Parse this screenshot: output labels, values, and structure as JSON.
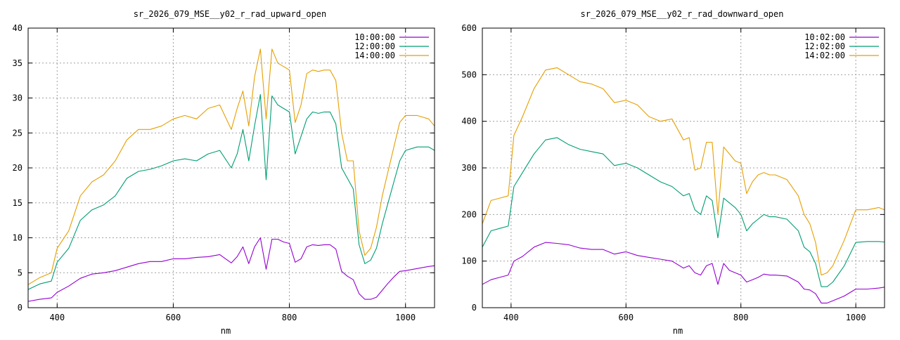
{
  "chart_data": [
    {
      "type": "line",
      "title": "sr_2026_079_MSE__y02_r_rad_upward_open",
      "xlabel": "nm",
      "ylabel": "",
      "xlim": [
        350,
        1050
      ],
      "ylim": [
        0,
        40
      ],
      "xticks": [
        400,
        600,
        800,
        1000
      ],
      "yticks": [
        0,
        5,
        10,
        15,
        20,
        25,
        30,
        35,
        40
      ],
      "grid": true,
      "legend": "top-right",
      "series": [
        {
          "name": "10:00:00",
          "color": "#9400d3",
          "x": [
            350,
            370,
            390,
            400,
            420,
            440,
            460,
            480,
            500,
            520,
            540,
            560,
            580,
            600,
            620,
            640,
            660,
            680,
            700,
            710,
            720,
            730,
            740,
            750,
            760,
            770,
            780,
            790,
            800,
            810,
            820,
            830,
            840,
            850,
            860,
            870,
            880,
            890,
            900,
            910,
            920,
            930,
            940,
            950,
            960,
            970,
            980,
            990,
            1000,
            1020,
            1040,
            1050
          ],
          "y": [
            0.9,
            1.2,
            1.4,
            2.2,
            3.1,
            4.2,
            4.8,
            5.0,
            5.3,
            5.8,
            6.3,
            6.6,
            6.6,
            7.0,
            7.0,
            7.2,
            7.3,
            7.6,
            6.4,
            7.3,
            8.7,
            6.3,
            8.7,
            10.0,
            5.5,
            9.8,
            9.8,
            9.4,
            9.2,
            6.5,
            7.0,
            8.7,
            9.0,
            8.9,
            9.0,
            9.0,
            8.4,
            5.2,
            4.5,
            4.0,
            2.0,
            1.2,
            1.2,
            1.5,
            2.5,
            3.5,
            4.4,
            5.2,
            5.3,
            5.6,
            5.9,
            6.0
          ]
        },
        {
          "name": "12:00:00",
          "color": "#009e73",
          "x": [
            350,
            370,
            390,
            400,
            420,
            440,
            460,
            480,
            500,
            520,
            540,
            560,
            580,
            600,
            620,
            640,
            660,
            680,
            700,
            710,
            720,
            730,
            740,
            750,
            760,
            770,
            780,
            790,
            800,
            810,
            820,
            830,
            840,
            850,
            860,
            870,
            880,
            890,
            900,
            910,
            920,
            930,
            940,
            950,
            960,
            970,
            980,
            990,
            1000,
            1020,
            1040,
            1050
          ],
          "y": [
            2.6,
            3.4,
            3.8,
            6.5,
            8.5,
            12.5,
            14.0,
            14.7,
            16.0,
            18.5,
            19.5,
            19.8,
            20.3,
            21.0,
            21.3,
            21.0,
            22.0,
            22.5,
            20.0,
            22.0,
            25.5,
            21.0,
            26.0,
            30.5,
            18.3,
            30.3,
            29.0,
            28.5,
            28.0,
            22.0,
            24.5,
            27.0,
            28.0,
            27.8,
            28.0,
            28.0,
            26.3,
            20.0,
            18.5,
            17.0,
            9.0,
            6.3,
            6.8,
            8.5,
            12.0,
            15.0,
            18.0,
            21.0,
            22.5,
            23.0,
            23.0,
            22.5
          ]
        },
        {
          "name": "14:00:00",
          "color": "#e69f00",
          "x": [
            350,
            370,
            390,
            400,
            420,
            440,
            460,
            480,
            500,
            520,
            540,
            560,
            580,
            600,
            620,
            640,
            660,
            680,
            700,
            710,
            720,
            730,
            740,
            750,
            760,
            770,
            780,
            790,
            800,
            810,
            820,
            830,
            840,
            850,
            860,
            870,
            880,
            890,
            900,
            910,
            920,
            930,
            940,
            950,
            960,
            970,
            980,
            990,
            1000,
            1020,
            1040,
            1050
          ],
          "y": [
            3.3,
            4.3,
            5.0,
            8.5,
            11.0,
            16.0,
            18.0,
            19.0,
            21.0,
            24.0,
            25.5,
            25.5,
            26.0,
            27.0,
            27.5,
            27.0,
            28.5,
            29.0,
            25.5,
            28.5,
            31.0,
            26.0,
            33.0,
            37.0,
            27.0,
            37.0,
            35.0,
            34.5,
            34.0,
            26.5,
            29.0,
            33.5,
            34.0,
            33.8,
            34.0,
            34.0,
            32.5,
            25.0,
            21.0,
            21.0,
            11.0,
            7.5,
            8.5,
            11.5,
            16.0,
            19.5,
            23.0,
            26.5,
            27.5,
            27.5,
            27.0,
            26.0
          ]
        }
      ]
    },
    {
      "type": "line",
      "title": "sr_2026_079_MSE__y02_r_rad_downward_open",
      "xlabel": "nm",
      "ylabel": "",
      "xlim": [
        350,
        1050
      ],
      "ylim": [
        0,
        600
      ],
      "xticks": [
        400,
        600,
        800,
        1000
      ],
      "yticks": [
        0,
        100,
        200,
        300,
        400,
        500,
        600
      ],
      "grid": true,
      "legend": "top-right",
      "series": [
        {
          "name": "10:02:00",
          "color": "#9400d3",
          "x": [
            350,
            365,
            380,
            395,
            405,
            420,
            440,
            460,
            480,
            500,
            520,
            540,
            560,
            580,
            600,
            620,
            640,
            660,
            680,
            700,
            710,
            720,
            730,
            740,
            750,
            760,
            770,
            780,
            790,
            800,
            810,
            820,
            830,
            840,
            850,
            860,
            880,
            900,
            910,
            920,
            930,
            940,
            950,
            960,
            980,
            1000,
            1020,
            1040,
            1050
          ],
          "y": [
            50,
            60,
            65,
            70,
            100,
            110,
            130,
            140,
            138,
            135,
            128,
            125,
            125,
            115,
            120,
            112,
            108,
            104,
            100,
            85,
            90,
            75,
            70,
            90,
            95,
            50,
            95,
            80,
            75,
            70,
            55,
            60,
            65,
            72,
            70,
            70,
            68,
            55,
            40,
            38,
            30,
            10,
            10,
            15,
            25,
            40,
            40,
            42,
            44
          ]
        },
        {
          "name": "12:02:00",
          "color": "#009e73",
          "x": [
            350,
            365,
            380,
            395,
            405,
            420,
            440,
            460,
            480,
            500,
            520,
            540,
            560,
            580,
            600,
            620,
            640,
            660,
            680,
            700,
            710,
            720,
            730,
            740,
            750,
            760,
            770,
            780,
            790,
            800,
            810,
            820,
            830,
            840,
            850,
            860,
            880,
            900,
            910,
            920,
            930,
            940,
            950,
            960,
            980,
            1000,
            1020,
            1040,
            1050
          ],
          "y": [
            130,
            165,
            170,
            175,
            260,
            290,
            330,
            360,
            365,
            350,
            340,
            335,
            330,
            305,
            310,
            300,
            285,
            270,
            260,
            240,
            245,
            210,
            200,
            240,
            230,
            150,
            235,
            225,
            215,
            200,
            165,
            180,
            190,
            200,
            195,
            195,
            190,
            165,
            130,
            120,
            95,
            45,
            45,
            55,
            90,
            140,
            142,
            142,
            141
          ]
        },
        {
          "name": "14:02:00",
          "color": "#e69f00",
          "x": [
            350,
            365,
            380,
            395,
            405,
            420,
            440,
            460,
            480,
            500,
            520,
            540,
            560,
            580,
            600,
            620,
            640,
            660,
            680,
            700,
            710,
            720,
            730,
            740,
            750,
            760,
            770,
            780,
            790,
            800,
            810,
            820,
            830,
            840,
            850,
            860,
            880,
            900,
            910,
            920,
            930,
            940,
            950,
            960,
            980,
            1000,
            1020,
            1040,
            1050
          ],
          "y": [
            180,
            230,
            235,
            240,
            370,
            410,
            470,
            510,
            515,
            500,
            485,
            480,
            470,
            440,
            445,
            435,
            410,
            400,
            405,
            360,
            365,
            295,
            300,
            355,
            355,
            200,
            345,
            330,
            315,
            310,
            245,
            270,
            285,
            290,
            285,
            285,
            275,
            240,
            200,
            180,
            140,
            70,
            75,
            90,
            145,
            210,
            210,
            215,
            210
          ]
        }
      ]
    }
  ]
}
